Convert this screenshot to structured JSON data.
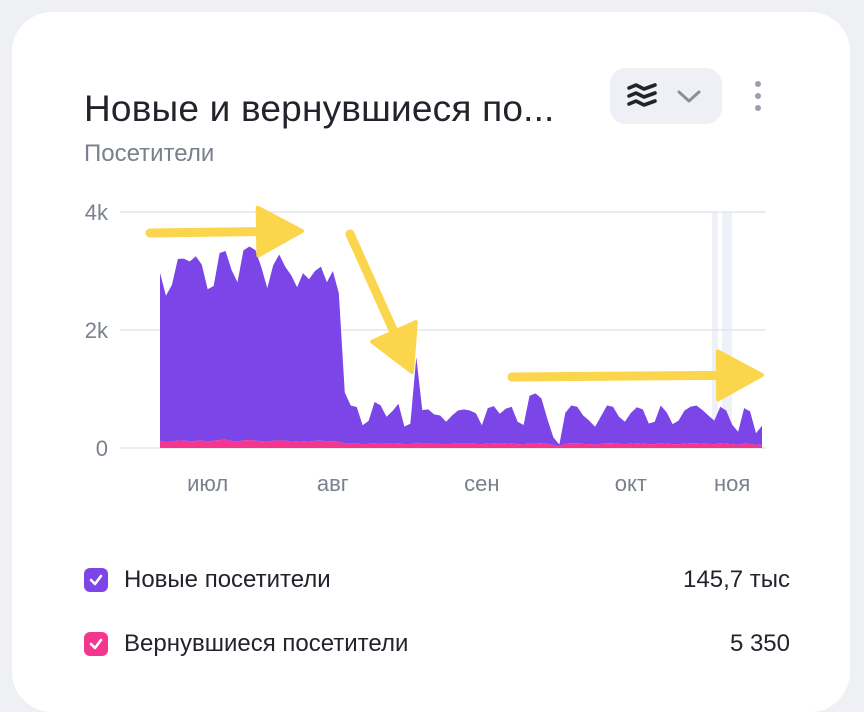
{
  "header": {
    "title": "Новые и вернувшиеся по...",
    "subtitle": "Посетители"
  },
  "icons": {
    "chart_type": "stacked-area-icon",
    "dropdown": "chevron-down-icon",
    "more": "more-vertical-icon",
    "check": "check-icon"
  },
  "colors": {
    "new": "#7b45e8",
    "returning": "#f5368f",
    "arrows": "#fbd54b",
    "grid": "#e4e6ea",
    "axis_text": "#7a818c"
  },
  "legend": [
    {
      "label": "Новые посетители",
      "value": "145,7 тыс",
      "color": "#7b45e8"
    },
    {
      "label": "Вернувшиеся посетители",
      "value": "5 350",
      "color": "#f5368f"
    }
  ],
  "chart_data": {
    "type": "area",
    "stacked": true,
    "ylim": [
      0,
      4000
    ],
    "y_ticks": [
      {
        "value": 0,
        "label": "0"
      },
      {
        "value": 2000,
        "label": "2k"
      },
      {
        "value": 4000,
        "label": "4k"
      }
    ],
    "x_ticks": [
      {
        "x": 8,
        "label": "июл"
      },
      {
        "x": 29,
        "label": "авг"
      },
      {
        "x": 54,
        "label": "сен"
      },
      {
        "x": 79,
        "label": "окт"
      },
      {
        "x": 96,
        "label": "ноя"
      }
    ],
    "x_range": [
      0,
      101
    ],
    "grid": true,
    "series": [
      {
        "name": "Новые посетители",
        "values": [
          2850,
          2480,
          2650,
          3080,
          3080,
          3050,
          3130,
          2980,
          2580,
          2620,
          3170,
          3200,
          2900,
          2700,
          3220,
          3280,
          3230,
          2950,
          2600,
          2980,
          3150,
          2950,
          2820,
          2620,
          2850,
          2750,
          2880,
          2950,
          2700,
          2880,
          2520,
          860,
          650,
          620,
          320,
          390,
          700,
          650,
          460,
          550,
          670,
          300,
          340,
          1450,
          570,
          580,
          500,
          480,
          380,
          480,
          560,
          580,
          560,
          520,
          320,
          600,
          630,
          510,
          590,
          620,
          380,
          330,
          800,
          840,
          760,
          420,
          130,
          30,
          520,
          640,
          620,
          480,
          400,
          300,
          470,
          640,
          620,
          460,
          380,
          520,
          610,
          580,
          350,
          380,
          640,
          530,
          340,
          400,
          560,
          620,
          640,
          570,
          480,
          400,
          620,
          560,
          330,
          220,
          600,
          550,
          200,
          320
        ]
      },
      {
        "name": "Вернувшиеся посетители",
        "values": [
          120,
          100,
          115,
          125,
          130,
          110,
          120,
          130,
          110,
          125,
          135,
          140,
          120,
          110,
          130,
          135,
          125,
          115,
          110,
          120,
          130,
          125,
          110,
          105,
          115,
          110,
          120,
          125,
          110,
          120,
          105,
          80,
          70,
          75,
          65,
          70,
          80,
          75,
          70,
          75,
          80,
          65,
          70,
          90,
          75,
          75,
          70,
          70,
          65,
          70,
          75,
          75,
          75,
          70,
          65,
          75,
          80,
          70,
          75,
          80,
          65,
          60,
          85,
          85,
          80,
          70,
          50,
          30,
          75,
          80,
          80,
          70,
          65,
          60,
          70,
          80,
          80,
          70,
          65,
          75,
          80,
          75,
          65,
          65,
          80,
          75,
          65,
          65,
          75,
          80,
          80,
          75,
          70,
          65,
          80,
          75,
          65,
          55,
          75,
          70,
          50,
          60
        ]
      }
    ]
  }
}
